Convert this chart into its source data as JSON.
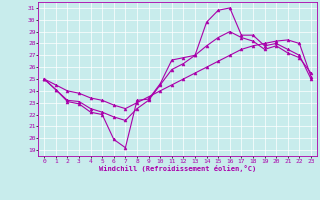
{
  "xlabel": "Windchill (Refroidissement éolien,°C)",
  "bg_color": "#c8ecec",
  "line_color": "#aa00aa",
  "xlim": [
    -0.5,
    23.5
  ],
  "ylim": [
    18.5,
    31.5
  ],
  "xticks": [
    0,
    1,
    2,
    3,
    4,
    5,
    6,
    7,
    8,
    9,
    10,
    11,
    12,
    13,
    14,
    15,
    16,
    17,
    18,
    19,
    20,
    21,
    22,
    23
  ],
  "yticks": [
    19,
    20,
    21,
    22,
    23,
    24,
    25,
    26,
    27,
    28,
    29,
    30,
    31
  ],
  "hours": [
    0,
    1,
    2,
    3,
    4,
    5,
    6,
    7,
    8,
    9,
    10,
    11,
    12,
    13,
    14,
    15,
    16,
    17,
    18,
    19,
    20,
    21,
    22,
    23
  ],
  "line1": [
    25.0,
    24.1,
    23.1,
    22.9,
    22.2,
    22.0,
    19.9,
    19.2,
    23.2,
    23.3,
    24.6,
    26.6,
    26.8,
    27.0,
    29.8,
    30.8,
    31.0,
    28.7,
    28.7,
    27.8,
    28.0,
    27.5,
    27.0,
    25.0
  ],
  "line2": [
    25.0,
    24.5,
    24.0,
    23.8,
    23.4,
    23.2,
    22.8,
    22.5,
    23.0,
    23.5,
    24.0,
    24.5,
    25.0,
    25.5,
    26.0,
    26.5,
    27.0,
    27.5,
    27.8,
    28.0,
    28.2,
    28.3,
    28.0,
    25.2
  ],
  "line3": [
    25.0,
    24.1,
    23.2,
    23.1,
    22.5,
    22.2,
    21.8,
    21.5,
    22.5,
    23.2,
    24.5,
    25.8,
    26.3,
    27.0,
    27.8,
    28.5,
    29.0,
    28.5,
    28.2,
    27.5,
    27.8,
    27.2,
    26.8,
    25.5
  ]
}
